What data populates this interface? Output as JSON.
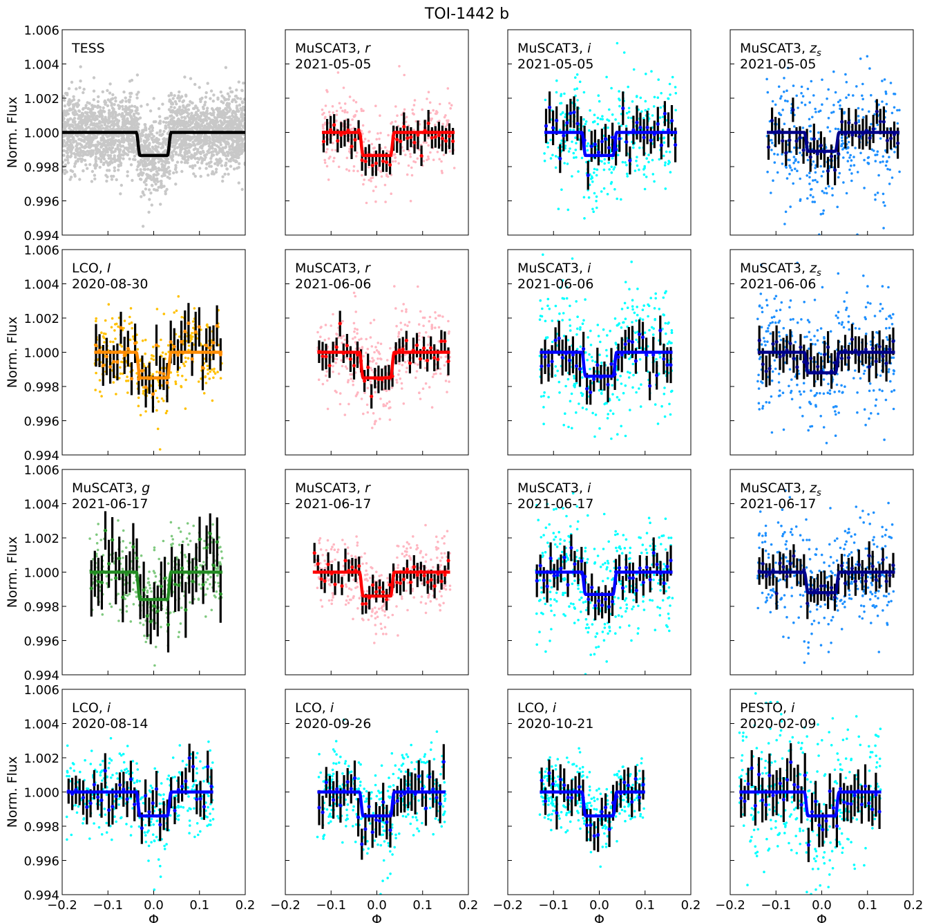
{
  "title": "TOI-1442 b",
  "xlabel": "Φ",
  "ylabel": "Norm. Flux",
  "xlim": [
    -0.2,
    0.2
  ],
  "ylim": [
    0.994,
    1.006
  ],
  "xticks": [
    "−0.2",
    "−0.1",
    "0.0",
    "0.1",
    "0.2"
  ],
  "yticks": [
    "0.994",
    "0.996",
    "0.998",
    "1.000",
    "1.002",
    "1.004",
    "1.006"
  ],
  "chart_data": [
    {
      "type": "scatter",
      "instrument": "TESS",
      "band": "",
      "date": "",
      "unbinned_color": "#c8c8c8",
      "binned_color": "",
      "model_color": "#000000",
      "x_range": [
        -0.2,
        0.2
      ],
      "depth": 0.00135,
      "unbinned_scatter": 0.0011,
      "binned_scatter": 0,
      "binned_count": 0,
      "errorbar": 0
    },
    {
      "type": "scatter",
      "instrument": "MuSCAT3, ",
      "band": "r",
      "date": "2021-05-05",
      "unbinned_color": "#ffb6c1",
      "binned_color": "#ff0000",
      "model_color": "#ff0000",
      "x_range": [
        -0.12,
        0.17
      ],
      "depth": 0.00135,
      "unbinned_scatter": 0.0012,
      "binned_scatter": 0.0005,
      "binned_count": 38,
      "errorbar": 0.0007
    },
    {
      "type": "scatter",
      "instrument": "MuSCAT3, ",
      "band": "i",
      "date": "2021-05-05",
      "unbinned_color": "#00ffff",
      "binned_color": "#0000ff",
      "model_color": "#0000ff",
      "x_range": [
        -0.12,
        0.17
      ],
      "depth": 0.00135,
      "unbinned_scatter": 0.0018,
      "binned_scatter": 0.0007,
      "binned_count": 38,
      "errorbar": 0.0009
    },
    {
      "type": "scatter",
      "instrument": "MuSCAT3, ",
      "band": "zs",
      "date": "2021-05-05",
      "unbinned_color": "#1e90ff",
      "binned_color": "#00008b",
      "model_color": "#00008b",
      "x_range": [
        -0.12,
        0.17
      ],
      "depth": 0.0011,
      "unbinned_scatter": 0.0019,
      "binned_scatter": 0.0006,
      "binned_count": 38,
      "errorbar": 0.0008
    },
    {
      "type": "scatter",
      "instrument": "LCO, ",
      "band": "I",
      "date": "2020-08-30",
      "unbinned_color": "#ffc000",
      "binned_color": "#ff8c00",
      "model_color": "#ff8c00",
      "x_range": [
        -0.13,
        0.15
      ],
      "depth": 0.0015,
      "unbinned_scatter": 0.0013,
      "binned_scatter": 0.0009,
      "binned_count": 36,
      "errorbar": 0.0011
    },
    {
      "type": "scatter",
      "instrument": "MuSCAT3, ",
      "band": "r",
      "date": "2021-06-06",
      "unbinned_color": "#ffb6c1",
      "binned_color": "#ff0000",
      "model_color": "#ff0000",
      "x_range": [
        -0.13,
        0.16
      ],
      "depth": 0.0015,
      "unbinned_scatter": 0.0013,
      "binned_scatter": 0.0005,
      "binned_count": 38,
      "errorbar": 0.0007
    },
    {
      "type": "scatter",
      "instrument": "MuSCAT3, ",
      "band": "i",
      "date": "2021-06-06",
      "unbinned_color": "#00ffff",
      "binned_color": "#0000ff",
      "model_color": "#0000ff",
      "x_range": [
        -0.13,
        0.16
      ],
      "depth": 0.0014,
      "unbinned_scatter": 0.002,
      "binned_scatter": 0.0007,
      "binned_count": 38,
      "errorbar": 0.0009
    },
    {
      "type": "scatter",
      "instrument": "MuSCAT3, ",
      "band": "zs",
      "date": "2021-06-06",
      "unbinned_color": "#1e90ff",
      "binned_color": "#00008b",
      "model_color": "#00008b",
      "x_range": [
        -0.14,
        0.16
      ],
      "depth": 0.0012,
      "unbinned_scatter": 0.0019,
      "binned_scatter": 0.0006,
      "binned_count": 40,
      "errorbar": 0.0009
    },
    {
      "type": "scatter",
      "instrument": "MuSCAT3, ",
      "band": "g",
      "date": "2021-06-17",
      "unbinned_color": "#7fc97f",
      "binned_color": "#228b22",
      "model_color": "#228b22",
      "x_range": [
        -0.14,
        0.15
      ],
      "depth": 0.0016,
      "unbinned_scatter": 0.0013,
      "binned_scatter": 0.0012,
      "binned_count": 38,
      "errorbar": 0.0014
    },
    {
      "type": "scatter",
      "instrument": "MuSCAT3, ",
      "band": "r",
      "date": "2021-06-17",
      "unbinned_color": "#ffb6c1",
      "binned_color": "#ff0000",
      "model_color": "#ff0000",
      "x_range": [
        -0.14,
        0.16
      ],
      "depth": 0.0014,
      "unbinned_scatter": 0.0011,
      "binned_scatter": 0.0005,
      "binned_count": 40,
      "errorbar": 0.0006
    },
    {
      "type": "scatter",
      "instrument": "MuSCAT3, ",
      "band": "i",
      "date": "2021-06-17",
      "unbinned_color": "#00ffff",
      "binned_color": "#0000ff",
      "model_color": "#0000ff",
      "x_range": [
        -0.14,
        0.16
      ],
      "depth": 0.0013,
      "unbinned_scatter": 0.0017,
      "binned_scatter": 0.0006,
      "binned_count": 40,
      "errorbar": 0.0008
    },
    {
      "type": "scatter",
      "instrument": "MuSCAT3, ",
      "band": "zs",
      "date": "2021-06-17",
      "unbinned_color": "#1e90ff",
      "binned_color": "#00008b",
      "model_color": "#00008b",
      "x_range": [
        -0.14,
        0.16
      ],
      "depth": 0.0012,
      "unbinned_scatter": 0.0017,
      "binned_scatter": 0.0005,
      "binned_count": 40,
      "errorbar": 0.0008
    },
    {
      "type": "scatter",
      "instrument": "LCO, ",
      "band": "i",
      "date": "2020-08-14",
      "unbinned_color": "#00ffff",
      "binned_color": "#0000ff",
      "model_color": "#0000ff",
      "x_range": [
        -0.19,
        0.13
      ],
      "depth": 0.0014,
      "unbinned_scatter": 0.0013,
      "binned_scatter": 0.0008,
      "binned_count": 40,
      "errorbar": 0.0009
    },
    {
      "type": "scatter",
      "instrument": "LCO, ",
      "band": "i",
      "date": "2020-09-26",
      "unbinned_color": "#00ffff",
      "binned_color": "#0000ff",
      "model_color": "#0000ff",
      "x_range": [
        -0.13,
        0.15
      ],
      "depth": 0.0014,
      "unbinned_scatter": 0.0014,
      "binned_scatter": 0.0008,
      "binned_count": 36,
      "errorbar": 0.001
    },
    {
      "type": "scatter",
      "instrument": "LCO, ",
      "band": "i",
      "date": "2020-10-21",
      "unbinned_color": "#00ffff",
      "binned_color": "#0000ff",
      "model_color": "#0000ff",
      "x_range": [
        -0.13,
        0.1
      ],
      "depth": 0.0014,
      "unbinned_scatter": 0.001,
      "binned_scatter": 0.0007,
      "binned_count": 28,
      "errorbar": 0.0009
    },
    {
      "type": "scatter",
      "instrument": "PESTO, ",
      "band": "i",
      "date": "2020-02-09",
      "unbinned_color": "#00ffff",
      "binned_color": "#0000ff",
      "model_color": "#0000ff",
      "x_range": [
        -0.18,
        0.13
      ],
      "depth": 0.0014,
      "unbinned_scatter": 0.0022,
      "binned_scatter": 0.0009,
      "binned_count": 40,
      "errorbar": 0.0011
    }
  ]
}
